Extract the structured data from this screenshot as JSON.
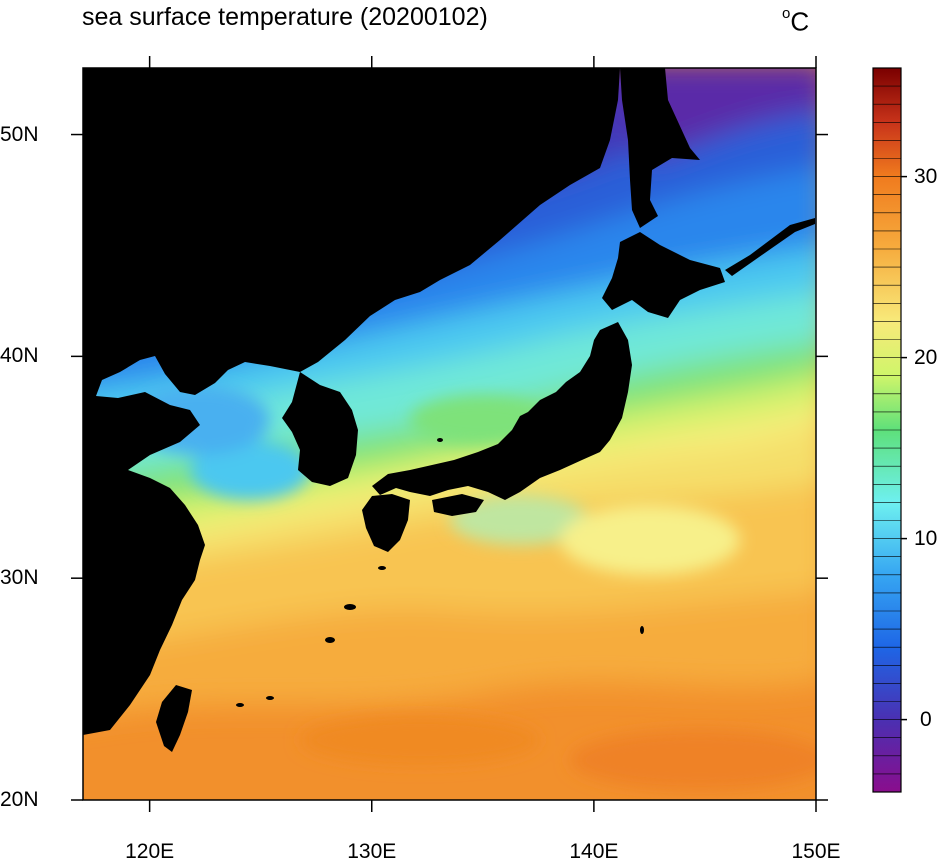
{
  "title": "sea surface temperature (20200102)",
  "units": {
    "symbol": "o",
    "letter": "C"
  },
  "map": {
    "lon_range": [
      117,
      150
    ],
    "lat_range": [
      20,
      53
    ],
    "lon_ticks": [
      {
        "value": 120,
        "label": "120E"
      },
      {
        "value": 130,
        "label": "130E"
      },
      {
        "value": 140,
        "label": "140E"
      },
      {
        "value": 150,
        "label": "150E"
      }
    ],
    "lat_ticks": [
      {
        "value": 50,
        "label": "50N"
      },
      {
        "value": 40,
        "label": "40N"
      },
      {
        "value": 30,
        "label": "30N"
      },
      {
        "value": 20,
        "label": "20N"
      }
    ],
    "land_color": "#000000"
  },
  "colorbar": {
    "range": [
      -4,
      36
    ],
    "ticks": [
      {
        "value": 30,
        "label": "30"
      },
      {
        "value": 20,
        "label": "20"
      },
      {
        "value": 10,
        "label": "10"
      },
      {
        "value": 0,
        "label": "0"
      }
    ],
    "stops": [
      {
        "value": -4,
        "color": "#8a0d8d"
      },
      {
        "value": 0,
        "color": "#4a30b2"
      },
      {
        "value": 4,
        "color": "#1e66e6"
      },
      {
        "value": 8,
        "color": "#36a6f2"
      },
      {
        "value": 12,
        "color": "#6ef0f0"
      },
      {
        "value": 16,
        "color": "#5ee07a"
      },
      {
        "value": 19,
        "color": "#cff56a"
      },
      {
        "value": 22,
        "color": "#f8ea7a"
      },
      {
        "value": 26,
        "color": "#f6ac3e"
      },
      {
        "value": 30,
        "color": "#f07b1e"
      },
      {
        "value": 33,
        "color": "#c8331a"
      },
      {
        "value": 36,
        "color": "#7a0000"
      }
    ]
  }
}
